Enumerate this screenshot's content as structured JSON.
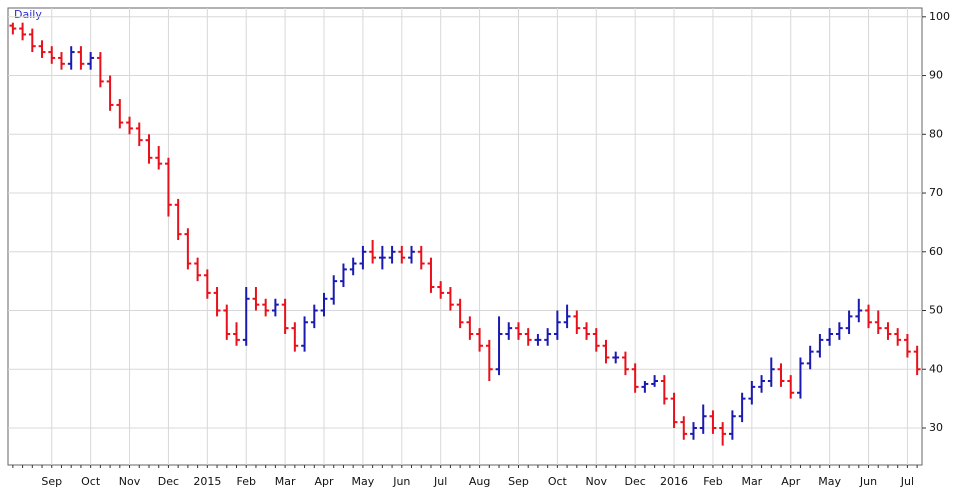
{
  "chart_data": {
    "type": "ohlc",
    "title": "Daily",
    "categories": [
      null,
      null,
      null,
      null,
      "Sep",
      null,
      null,
      null,
      "Oct",
      null,
      null,
      null,
      "Nov",
      null,
      null,
      null,
      "Dec",
      null,
      null,
      null,
      "2015",
      null,
      null,
      null,
      "Feb",
      null,
      null,
      null,
      "Mar",
      null,
      null,
      null,
      "Apr",
      null,
      null,
      null,
      "May",
      null,
      null,
      null,
      "Jun",
      null,
      null,
      null,
      "Jul",
      null,
      null,
      null,
      "Aug",
      null,
      null,
      null,
      "Sep",
      null,
      null,
      null,
      "Oct",
      null,
      null,
      null,
      "Nov",
      null,
      null,
      null,
      "Dec",
      null,
      null,
      null,
      "2016",
      null,
      null,
      null,
      "Feb",
      null,
      null,
      null,
      "Mar",
      null,
      null,
      null,
      "Apr",
      null,
      null,
      null,
      "May",
      null,
      null,
      null,
      "Jun",
      null,
      null,
      null,
      "Jul",
      null
    ],
    "ohlc": [
      [
        98.5,
        99,
        97,
        98
      ],
      [
        98,
        99,
        96,
        97
      ],
      [
        97,
        98,
        94,
        95
      ],
      [
        95,
        96,
        93,
        94
      ],
      [
        94,
        95,
        92,
        93
      ],
      [
        93,
        94,
        91,
        92
      ],
      [
        92,
        95,
        91,
        94
      ],
      [
        94,
        95,
        91,
        92
      ],
      [
        92,
        94,
        91,
        93
      ],
      [
        93,
        94,
        88,
        89
      ],
      [
        89,
        90,
        84,
        85
      ],
      [
        85,
        86,
        81,
        82
      ],
      [
        82,
        83,
        80,
        81
      ],
      [
        81,
        82,
        78,
        79
      ],
      [
        79,
        80,
        75,
        76
      ],
      [
        76,
        78,
        74,
        75
      ],
      [
        75,
        76,
        66,
        68
      ],
      [
        68,
        69,
        62,
        63
      ],
      [
        63,
        64,
        57,
        58
      ],
      [
        58,
        59,
        55,
        56
      ],
      [
        56,
        57,
        52,
        53
      ],
      [
        53,
        54,
        49,
        50
      ],
      [
        50,
        51,
        45,
        46
      ],
      [
        46,
        48,
        44,
        45
      ],
      [
        45,
        54,
        44,
        52
      ],
      [
        52,
        54,
        50,
        51
      ],
      [
        51,
        52,
        49,
        50
      ],
      [
        50,
        52,
        49,
        51
      ],
      [
        51,
        52,
        46,
        47
      ],
      [
        47,
        48,
        43,
        44
      ],
      [
        44,
        49,
        43,
        48
      ],
      [
        48,
        51,
        47,
        50
      ],
      [
        50,
        53,
        49,
        52
      ],
      [
        52,
        56,
        51,
        55
      ],
      [
        55,
        58,
        54,
        57
      ],
      [
        57,
        59,
        56,
        58
      ],
      [
        58,
        61,
        57,
        60
      ],
      [
        60,
        62,
        58,
        59
      ],
      [
        59,
        61,
        57,
        59
      ],
      [
        59,
        61,
        58,
        60
      ],
      [
        60,
        61,
        58,
        59
      ],
      [
        59,
        61,
        58,
        60
      ],
      [
        60,
        61,
        57,
        58
      ],
      [
        58,
        59,
        53,
        54
      ],
      [
        54,
        55,
        52,
        53
      ],
      [
        53,
        54,
        50,
        51
      ],
      [
        51,
        52,
        47,
        48
      ],
      [
        48,
        49,
        45,
        46
      ],
      [
        46,
        47,
        43,
        44
      ],
      [
        44,
        45,
        38,
        40
      ],
      [
        40,
        49,
        39,
        46
      ],
      [
        46,
        48,
        45,
        47
      ],
      [
        47,
        48,
        45,
        46
      ],
      [
        46,
        47,
        44,
        45
      ],
      [
        45,
        46,
        44,
        45
      ],
      [
        45,
        47,
        44,
        46
      ],
      [
        46,
        50,
        45,
        48
      ],
      [
        48,
        51,
        47,
        49
      ],
      [
        49,
        50,
        46,
        47
      ],
      [
        47,
        48,
        45,
        46
      ],
      [
        46,
        47,
        43,
        44
      ],
      [
        44,
        45,
        41,
        42
      ],
      [
        42,
        43,
        41,
        42
      ],
      [
        42,
        43,
        39,
        40
      ],
      [
        40,
        41,
        36,
        37
      ],
      [
        37,
        38,
        36,
        37.5
      ],
      [
        37.5,
        39,
        37,
        38
      ],
      [
        38,
        39,
        34,
        35
      ],
      [
        35,
        36,
        30,
        31
      ],
      [
        31,
        32,
        28,
        29
      ],
      [
        29,
        31,
        28,
        30
      ],
      [
        30,
        34,
        29,
        32
      ],
      [
        32,
        33,
        29,
        30
      ],
      [
        30,
        31,
        27,
        29
      ],
      [
        29,
        33,
        28,
        32
      ],
      [
        32,
        36,
        31,
        35
      ],
      [
        35,
        38,
        34,
        37
      ],
      [
        37,
        39,
        36,
        38
      ],
      [
        38,
        42,
        37,
        40
      ],
      [
        40,
        41,
        37,
        38
      ],
      [
        38,
        39,
        35,
        36
      ],
      [
        36,
        42,
        35,
        41
      ],
      [
        41,
        44,
        40,
        43
      ],
      [
        43,
        46,
        42,
        45
      ],
      [
        45,
        47,
        44,
        46
      ],
      [
        46,
        48,
        45,
        47
      ],
      [
        47,
        50,
        46,
        49
      ],
      [
        49,
        52,
        48,
        50
      ],
      [
        50,
        51,
        47,
        48
      ],
      [
        48,
        50,
        46,
        47
      ],
      [
        47,
        48,
        45,
        46
      ],
      [
        46,
        47,
        44,
        45
      ],
      [
        45,
        46,
        42,
        43
      ],
      [
        43,
        44,
        39,
        40
      ]
    ],
    "up_color": "#1a1ab0",
    "down_color": "#e8101a",
    "ylim": [
      23.7,
      101.5
    ],
    "yticks": [
      30,
      40,
      50,
      60,
      70,
      80,
      90,
      100
    ],
    "grid": true
  }
}
